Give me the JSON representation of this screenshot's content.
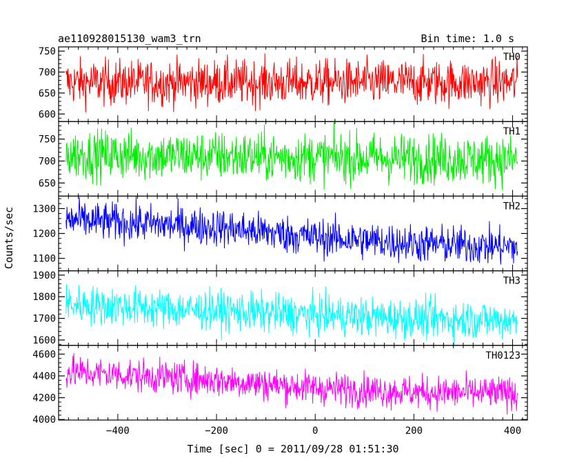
{
  "header": {
    "title": "ae110928015130_wam3_trn",
    "bin_time": "Bin time: 1.0 s"
  },
  "chart_data": {
    "type": "line",
    "xlabel": "Time [sec] 0 = 2011/09/28 01:51:30",
    "ylabel": "Counts/sec",
    "xlim": [
      -520,
      430
    ],
    "x_ticks": [
      -400,
      -200,
      0,
      200,
      400
    ],
    "x_range": [
      -505,
      410
    ],
    "bin": 1.0,
    "panels": [
      {
        "name": "TH0",
        "color": "#ff0000",
        "ylim": [
          582,
          760
        ],
        "y_ticks": [
          600,
          650,
          700,
          750
        ],
        "trend": {
          "x": [
            -505,
            410
          ],
          "y": [
            675,
            675
          ]
        },
        "noise": 27
      },
      {
        "name": "TH1",
        "color": "#00ee00",
        "ylim": [
          620,
          790
        ],
        "y_ticks": [
          650,
          700,
          750
        ],
        "trend": {
          "x": [
            -505,
            410
          ],
          "y": [
            715,
            703
          ]
        },
        "noise": 28
      },
      {
        "name": "TH2",
        "color": "#0000ff",
        "ylim": [
          1050,
          1350
        ],
        "y_ticks": [
          1100,
          1200,
          1300
        ],
        "trend": {
          "x": [
            -505,
            -200,
            0,
            200,
            410
          ],
          "y": [
            1255,
            1225,
            1185,
            1160,
            1145
          ]
        },
        "noise": 38
      },
      {
        "name": "TH3",
        "color": "#00ffff",
        "ylim": [
          1575,
          1920
        ],
        "y_ticks": [
          1600,
          1700,
          1800,
          1900
        ],
        "trend": {
          "x": [
            -505,
            -200,
            0,
            200,
            410
          ],
          "y": [
            1765,
            1735,
            1715,
            1700,
            1690
          ]
        },
        "noise": 45
      },
      {
        "name": "TH0123",
        "color": "#ff00ff",
        "ylim": [
          3995,
          4680
        ],
        "y_ticks": [
          4000,
          4200,
          4400,
          4600
        ],
        "trend": {
          "x": [
            -505,
            -200,
            0,
            200,
            410
          ],
          "y": [
            4440,
            4360,
            4290,
            4250,
            4240
          ]
        },
        "noise": 75
      }
    ]
  }
}
